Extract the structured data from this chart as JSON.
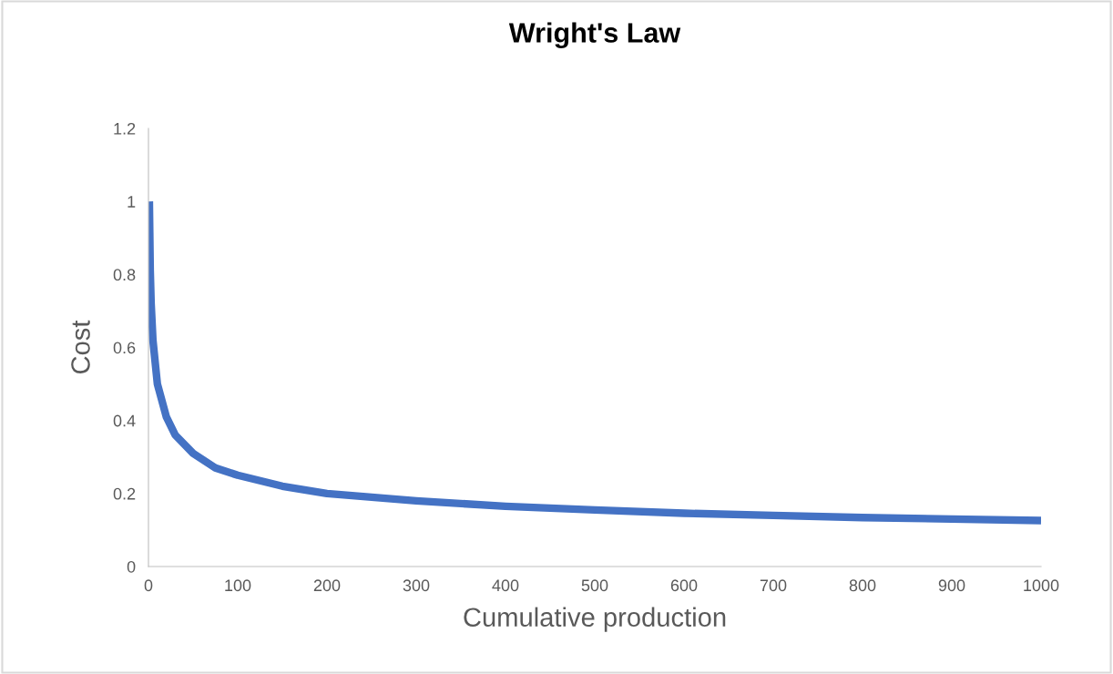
{
  "chart_data": {
    "type": "line",
    "title": "Wright's Law",
    "xlabel": "Cumulative production",
    "ylabel": "Cost",
    "x": [
      1,
      2,
      3,
      5,
      10,
      20,
      30,
      50,
      75,
      100,
      150,
      200,
      300,
      400,
      500,
      600,
      700,
      800,
      900,
      1000
    ],
    "series": [
      {
        "color": "#4472c4",
        "values": [
          1.0,
          0.81,
          0.72,
          0.62,
          0.5,
          0.41,
          0.36,
          0.31,
          0.27,
          0.25,
          0.22,
          0.2,
          0.18,
          0.165,
          0.155,
          0.146,
          0.14,
          0.134,
          0.13,
          0.126
        ]
      }
    ],
    "xlim": [
      0,
      1000
    ],
    "xticks": [
      0,
      100,
      200,
      300,
      400,
      500,
      600,
      700,
      800,
      900,
      1000
    ],
    "ylim": [
      0,
      1.2
    ],
    "yticks": [
      0,
      0.2,
      0.4,
      0.6,
      0.8,
      1,
      1.2
    ],
    "grid": false,
    "marker": "none",
    "line_style": "solid"
  }
}
